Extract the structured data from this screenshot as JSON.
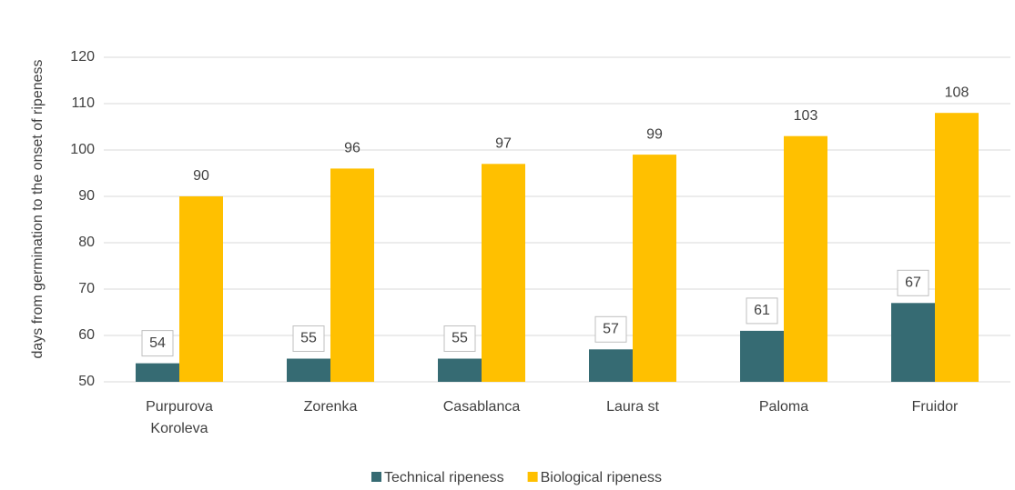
{
  "chart_data": {
    "type": "bar",
    "y_label": "days from germination to the onset of ripeness",
    "categories": [
      "Purpurova Koroleva",
      "Zorenka",
      "Casablanca",
      "Laura st",
      "Paloma",
      "Fruidor"
    ],
    "series": [
      {
        "name": "Technical ripeness",
        "color": "#366b73",
        "values": [
          54,
          55,
          55,
          57,
          61,
          67
        ]
      },
      {
        "name": "Biological ripeness",
        "color": "#ffc000",
        "values": [
          90,
          96,
          97,
          99,
          103,
          108
        ]
      }
    ],
    "ylim": [
      50,
      120
    ],
    "yticks": [
      50,
      60,
      70,
      80,
      90,
      100,
      110,
      120
    ],
    "grid": true,
    "legend": "bottom"
  }
}
